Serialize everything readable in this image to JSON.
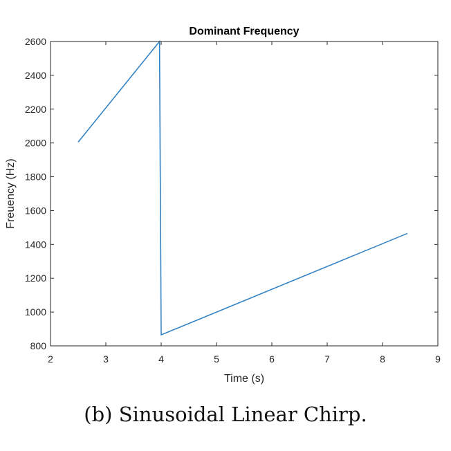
{
  "chart_data": {
    "type": "line",
    "title": "Dominant Frequency",
    "xlabel": "Time (s)",
    "ylabel": "Freuency (Hz)",
    "xlim": [
      2,
      9
    ],
    "ylim": [
      800,
      2600
    ],
    "xticks": [
      "2",
      "3",
      "4",
      "5",
      "6",
      "7",
      "8",
      "9"
    ],
    "yticks": [
      "800",
      "1000",
      "1200",
      "1400",
      "1600",
      "1800",
      "2000",
      "2200",
      "2400",
      "2600"
    ],
    "grid": false,
    "color": "#3483c4",
    "series": [
      {
        "x": [
          2.5,
          3.97,
          3.97,
          4.0,
          8.45
        ],
        "y": [
          2005,
          2600,
          2600,
          865,
          1465
        ]
      }
    ]
  },
  "caption": "(b) Sinusoidal Linear Chirp."
}
